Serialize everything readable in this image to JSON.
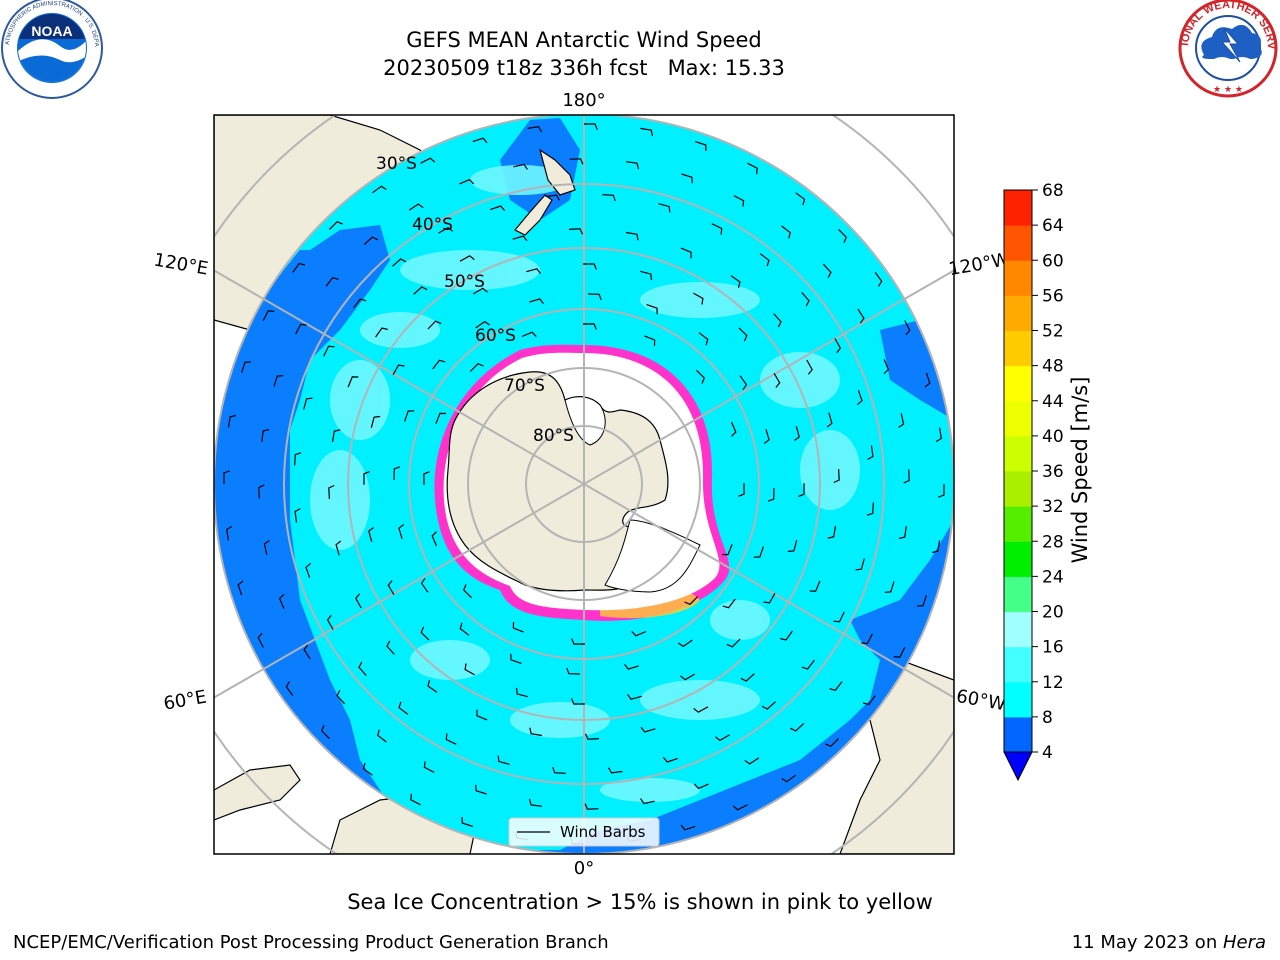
{
  "title": {
    "line1": "GEFS MEAN Antarctic Wind Speed",
    "line2": "20230509 t18z 336h fcst   Max: 15.33"
  },
  "logos": {
    "left": "NOAA",
    "left_ring_text": "NATIONAL OCEANIC AND ATMOSPHERIC ADMINISTRATION · U.S. DEPARTMENT OF COMMERCE",
    "right_ring_text": "NATIONAL WEATHER SERVICE"
  },
  "map": {
    "projection": "south-polar-stereographic",
    "latitude_labels": [
      "30°S",
      "40°S",
      "50°S",
      "60°S",
      "70°S",
      "80°S"
    ],
    "longitude_labels": {
      "top": "180°",
      "bottom": "0°",
      "upper_left": "120°E",
      "lower_left": "60°E",
      "upper_right": "120°W",
      "lower_right": "60°W"
    },
    "legend_label": "Wind Barbs",
    "colors": {
      "land": "#efecdc",
      "low_wind": "#0a7eff",
      "mid_wind": "#00f0ff",
      "high_wind": "#6ff7ff",
      "sea_ice_low": "#ff33cc",
      "sea_ice_high": "#ffcc33",
      "grid": "#b4b4b4"
    }
  },
  "colorbar": {
    "label": "Wind Speed [m/s]",
    "ticks": [
      "68",
      "64",
      "60",
      "56",
      "52",
      "48",
      "44",
      "40",
      "36",
      "32",
      "28",
      "24",
      "20",
      "16",
      "12",
      "8",
      "4"
    ],
    "colors": [
      "#0000ff",
      "#0066ff",
      "#00ffff",
      "#44ffff",
      "#a0ffff",
      "#44ff88",
      "#00ee00",
      "#55ee00",
      "#aaee00",
      "#ccff00",
      "#eeff00",
      "#ffff00",
      "#ffcc00",
      "#ffaa00",
      "#ff8800",
      "#ff5500",
      "#ff2200",
      "#ff0000"
    ]
  },
  "footer": {
    "sea_ice_note": "Sea Ice Concentration > 15% is shown in pink to yellow",
    "credit": "NCEP/EMC/Verification Post Processing Product Generation Branch",
    "date": "11 May 2023 on ",
    "machine": "Hera"
  }
}
